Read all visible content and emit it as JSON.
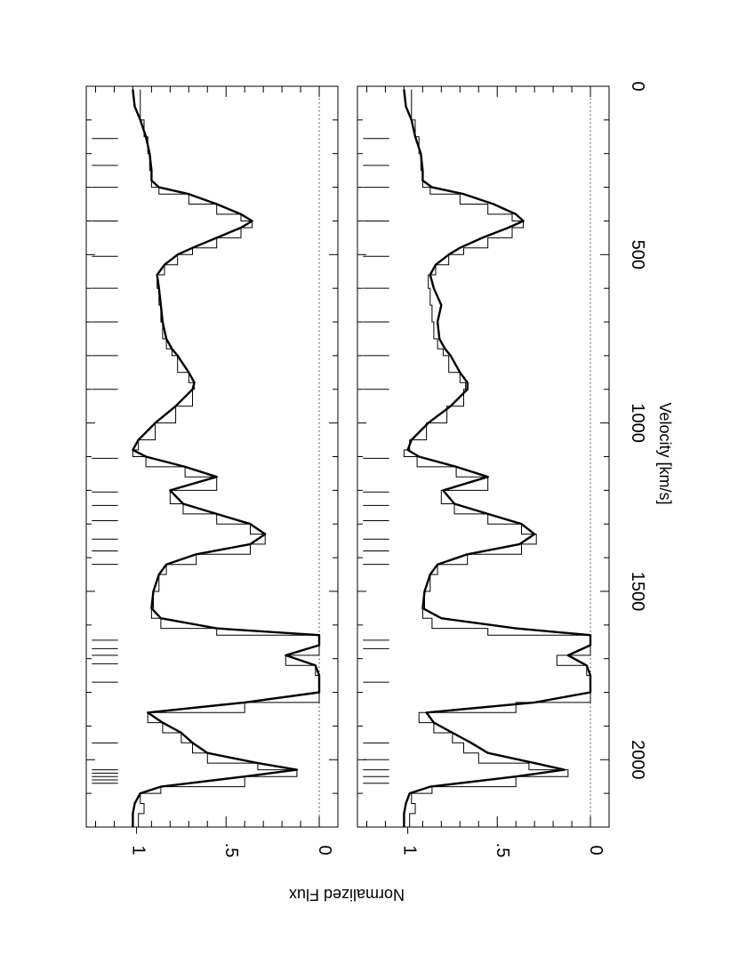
{
  "chart_data": [
    {
      "type": "line",
      "panel": "top",
      "orientation": "rotated 90 degrees clockwise (velocity runs top to bottom)",
      "xlabel": "Velocity [km/s]",
      "ylabel": "Normalized Flux",
      "xlim": [
        0,
        2200
      ],
      "ylim": [
        -0.1,
        1.25
      ],
      "x_tick_labels": [
        "0",
        "500",
        "1000",
        "1500",
        "2000"
      ],
      "y_tick_labels": [
        "0",
        ".5",
        "1"
      ],
      "grid": false,
      "reference_line": {
        "value": 0,
        "style": "dotted"
      },
      "component_markers": [
        155,
        235,
        300,
        400,
        505,
        600,
        700,
        800,
        900,
        1105,
        1205,
        1245,
        1290,
        1345,
        1380,
        1420,
        1645,
        1670,
        1690,
        1715,
        1770,
        1950,
        2030,
        2040,
        2050,
        2060,
        2070
      ],
      "series": [
        {
          "style": "histogram",
          "x": [
            10,
            60,
            100,
            150,
            200,
            250,
            280,
            300,
            320,
            350,
            380,
            400,
            420,
            450,
            480,
            500,
            530,
            560,
            600,
            650,
            700,
            750,
            780,
            800,
            850,
            880,
            900,
            950,
            1000,
            1050,
            1080,
            1100,
            1130,
            1160,
            1200,
            1240,
            1270,
            1300,
            1330,
            1360,
            1390,
            1420,
            1450,
            1500,
            1550,
            1580,
            1610,
            1630,
            1660,
            1690,
            1720,
            1750,
            1800,
            1830,
            1860,
            1890,
            1920,
            1950,
            1980,
            2010,
            2030,
            2050,
            2080,
            2100,
            2130,
            2160,
            2200
          ],
          "values": [
            0.96,
            0.96,
            0.94,
            0.92,
            0.91,
            0.9,
            0.9,
            0.86,
            0.7,
            0.55,
            0.42,
            0.36,
            0.42,
            0.55,
            0.68,
            0.76,
            0.83,
            0.87,
            0.86,
            0.85,
            0.84,
            0.82,
            0.79,
            0.76,
            0.7,
            0.67,
            0.68,
            0.77,
            0.88,
            0.97,
            1.0,
            0.93,
            0.72,
            0.55,
            0.8,
            0.73,
            0.55,
            0.37,
            0.29,
            0.37,
            0.66,
            0.82,
            0.86,
            0.89,
            0.9,
            0.85,
            0.55,
            0.0,
            0.0,
            0.18,
            0.02,
            0.0,
            0.0,
            0.4,
            0.92,
            0.84,
            0.74,
            0.68,
            0.6,
            0.33,
            0.12,
            0.4,
            0.85,
            0.96,
            0.94,
            0.97,
            0.98
          ]
        },
        {
          "style": "model",
          "x": [
            10,
            60,
            100,
            150,
            200,
            250,
            280,
            300,
            320,
            350,
            380,
            400,
            420,
            450,
            480,
            500,
            530,
            560,
            600,
            650,
            700,
            750,
            780,
            800,
            850,
            880,
            900,
            950,
            1000,
            1050,
            1080,
            1100,
            1130,
            1160,
            1200,
            1240,
            1270,
            1300,
            1330,
            1360,
            1390,
            1420,
            1450,
            1500,
            1550,
            1580,
            1610,
            1630,
            1660,
            1690,
            1720,
            1750,
            1800,
            1830,
            1860,
            1890,
            1920,
            1950,
            1980,
            2010,
            2030,
            2050,
            2080,
            2100,
            2130,
            2160,
            2200
          ],
          "values": [
            1.0,
            0.99,
            0.96,
            0.93,
            0.91,
            0.9,
            0.9,
            0.86,
            0.7,
            0.55,
            0.42,
            0.36,
            0.42,
            0.55,
            0.68,
            0.76,
            0.83,
            0.87,
            0.86,
            0.85,
            0.84,
            0.82,
            0.79,
            0.76,
            0.7,
            0.67,
            0.68,
            0.77,
            0.88,
            0.97,
            1.0,
            0.93,
            0.72,
            0.55,
            0.8,
            0.73,
            0.55,
            0.37,
            0.29,
            0.37,
            0.66,
            0.82,
            0.86,
            0.89,
            0.9,
            0.85,
            0.55,
            0.0,
            0.0,
            0.18,
            0.02,
            0.0,
            0.0,
            0.4,
            0.92,
            0.84,
            0.74,
            0.68,
            0.6,
            0.33,
            0.12,
            0.4,
            0.85,
            0.96,
            0.99,
            1.0,
            1.0
          ]
        }
      ]
    },
    {
      "type": "line",
      "panel": "bottom",
      "orientation": "rotated 90 degrees clockwise (velocity runs top to bottom)",
      "xlabel": "Velocity [km/s]",
      "ylabel": "Normalized Flux",
      "xlim": [
        0,
        2200
      ],
      "ylim": [
        -0.1,
        1.25
      ],
      "x_tick_labels": [
        "0",
        "500",
        "1000",
        "1500",
        "2000"
      ],
      "y_tick_labels": [
        "0",
        ".5",
        "1"
      ],
      "grid": false,
      "reference_line": {
        "value": 0,
        "style": "dotted"
      },
      "component_markers": [
        155,
        235,
        300,
        400,
        505,
        600,
        700,
        800,
        900,
        1105,
        1205,
        1245,
        1290,
        1345,
        1380,
        1420,
        1645,
        1670,
        1770,
        1950,
        2000,
        2030,
        2050,
        2070
      ],
      "series": [
        {
          "style": "histogram",
          "x": [
            10,
            60,
            100,
            150,
            200,
            250,
            280,
            300,
            320,
            350,
            380,
            400,
            420,
            450,
            480,
            500,
            530,
            560,
            600,
            650,
            700,
            750,
            780,
            800,
            850,
            880,
            900,
            950,
            1000,
            1050,
            1080,
            1100,
            1130,
            1160,
            1200,
            1240,
            1270,
            1300,
            1330,
            1360,
            1390,
            1420,
            1450,
            1500,
            1550,
            1580,
            1610,
            1630,
            1660,
            1690,
            1720,
            1750,
            1800,
            1830,
            1860,
            1890,
            1920,
            1950,
            1980,
            2010,
            2030,
            2050,
            2080,
            2100,
            2130,
            2160,
            2200
          ],
          "values": [
            0.96,
            0.96,
            0.94,
            0.92,
            0.91,
            0.9,
            0.9,
            0.86,
            0.7,
            0.55,
            0.42,
            0.36,
            0.42,
            0.55,
            0.68,
            0.76,
            0.83,
            0.87,
            0.86,
            0.85,
            0.84,
            0.82,
            0.79,
            0.76,
            0.7,
            0.67,
            0.68,
            0.77,
            0.88,
            0.97,
            1.0,
            0.93,
            0.72,
            0.55,
            0.8,
            0.73,
            0.55,
            0.37,
            0.29,
            0.37,
            0.66,
            0.82,
            0.86,
            0.89,
            0.9,
            0.85,
            0.55,
            0.0,
            0.0,
            0.18,
            0.02,
            0.0,
            0.0,
            0.4,
            0.92,
            0.84,
            0.74,
            0.68,
            0.6,
            0.33,
            0.12,
            0.4,
            0.85,
            0.96,
            0.94,
            0.97,
            0.98
          ]
        },
        {
          "style": "model",
          "x": [
            10,
            60,
            100,
            150,
            200,
            250,
            280,
            300,
            320,
            350,
            380,
            400,
            420,
            450,
            480,
            500,
            530,
            560,
            600,
            650,
            700,
            750,
            780,
            800,
            850,
            880,
            900,
            950,
            1000,
            1050,
            1080,
            1100,
            1130,
            1160,
            1200,
            1240,
            1270,
            1300,
            1330,
            1360,
            1390,
            1420,
            1450,
            1500,
            1550,
            1580,
            1610,
            1630,
            1660,
            1690,
            1720,
            1750,
            1800,
            1830,
            1860,
            1890,
            1920,
            1950,
            1980,
            2010,
            2030,
            2050,
            2080,
            2100,
            2130,
            2160,
            2200
          ],
          "values": [
            1.0,
            0.99,
            0.96,
            0.94,
            0.91,
            0.9,
            0.9,
            0.85,
            0.68,
            0.52,
            0.4,
            0.36,
            0.44,
            0.58,
            0.7,
            0.76,
            0.83,
            0.86,
            0.84,
            0.8,
            0.82,
            0.81,
            0.78,
            0.75,
            0.7,
            0.66,
            0.66,
            0.75,
            0.87,
            0.96,
            0.98,
            0.92,
            0.72,
            0.55,
            0.79,
            0.73,
            0.55,
            0.37,
            0.3,
            0.38,
            0.66,
            0.82,
            0.86,
            0.89,
            0.9,
            0.8,
            0.4,
            0.0,
            0.0,
            0.12,
            0.02,
            0.0,
            0.0,
            0.3,
            0.88,
            0.84,
            0.74,
            0.64,
            0.55,
            0.3,
            0.14,
            0.4,
            0.86,
            0.97,
            0.99,
            1.0,
            1.0
          ]
        }
      ]
    }
  ]
}
